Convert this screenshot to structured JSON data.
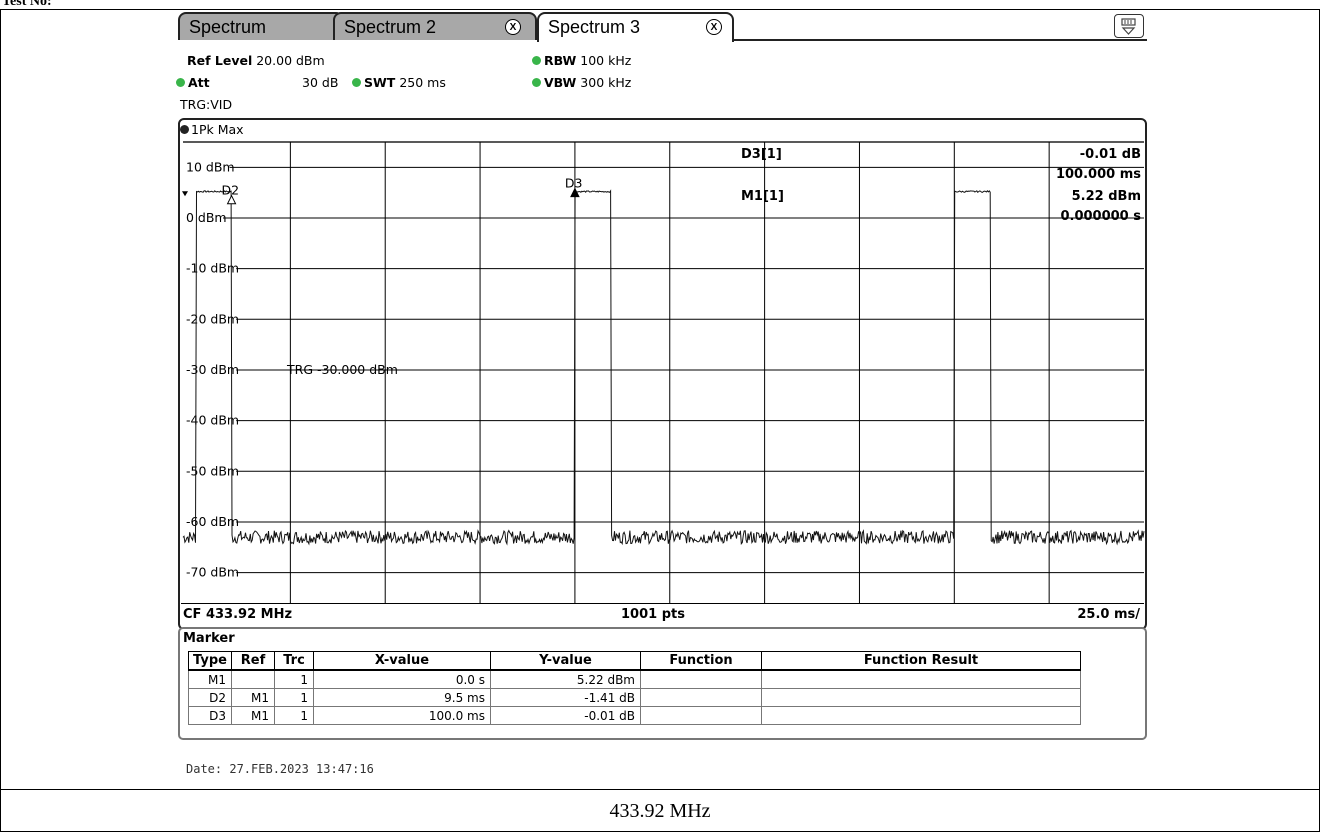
{
  "page": {
    "top_label": "Test No:",
    "caption": "433.92 MHz"
  },
  "tabs": [
    {
      "label": "Spectrum",
      "closable": false,
      "active": false
    },
    {
      "label": "Spectrum 2",
      "closable": true,
      "active": false
    },
    {
      "label": "Spectrum 3",
      "closable": true,
      "active": true
    }
  ],
  "tab_close_glyph": "X",
  "header": {
    "ref_level_label": "Ref Level",
    "ref_level_value": "20.00 dBm",
    "att_label": "Att",
    "att_value": "30 dB",
    "swt_label": "SWT",
    "swt_value": "250 ms",
    "rbw_label": "RBW",
    "rbw_value": "100 kHz",
    "vbw_label": "VBW",
    "vbw_value": "300 kHz",
    "trigger": "TRG:VID",
    "indicator_color": "#39b54a"
  },
  "trace_label": "1Pk Max",
  "chart_data": {
    "type": "line",
    "x_unit": "ms",
    "xlim": [
      -3.3,
      250
    ],
    "ylim": [
      -76,
      15
    ],
    "y_gridlines": [
      10,
      0,
      -10,
      -20,
      -30,
      -40,
      -50,
      -60,
      -70
    ],
    "x_gridlines": [
      25,
      50,
      75,
      100,
      125,
      150,
      175,
      200,
      225
    ],
    "ytick_labels": [
      "10 dBm",
      "0 dBm",
      "-10 dBm",
      "-20 dBm",
      "-30 dBm",
      "-40 dBm",
      "-50 dBm",
      "-60 dBm",
      "-70 dBm"
    ],
    "noise_floor_dbm": -63,
    "pulses": [
      {
        "start_ms": 0.0,
        "end_ms": 9.5,
        "level_dbm": 5.22
      },
      {
        "start_ms": 100.0,
        "end_ms": 109.5,
        "level_dbm": 5.21
      },
      {
        "start_ms": 200.0,
        "end_ms": 209.5,
        "level_dbm": 5.22
      }
    ],
    "trigger_line": {
      "level_dbm": -30,
      "label": "TRG -30.000 dBm"
    },
    "markers": [
      {
        "name": "D2",
        "x_ms": 9.5,
        "y_dbm": 3.81
      },
      {
        "name": "D3",
        "x_ms": 100.0,
        "y_dbm": 5.21
      }
    ],
    "readout": [
      {
        "label": "D3[1]",
        "value": "-0.01 dB",
        "value2": "100.000 ms"
      },
      {
        "label": "M1[1]",
        "value": "5.22 dBm",
        "value2": "0.000000 s"
      }
    ]
  },
  "footer": {
    "cf": "CF 433.92 MHz",
    "pts": "1001 pts",
    "span": "25.0 ms/"
  },
  "marker_table": {
    "title": "Marker",
    "headers": [
      "Type",
      "Ref",
      "Trc",
      "X-value",
      "Y-value",
      "Function",
      "Function Result"
    ],
    "rows": [
      [
        "M1",
        "",
        "1",
        "0.0 s",
        "5.22 dBm",
        "",
        ""
      ],
      [
        "D2",
        "M1",
        "1",
        "9.5 ms",
        "-1.41 dB",
        "",
        ""
      ],
      [
        "D3",
        "M1",
        "1",
        "100.0 ms",
        "-0.01 dB",
        "",
        ""
      ]
    ]
  },
  "date_line": "Date: 27.FEB.2023  13:47:16"
}
